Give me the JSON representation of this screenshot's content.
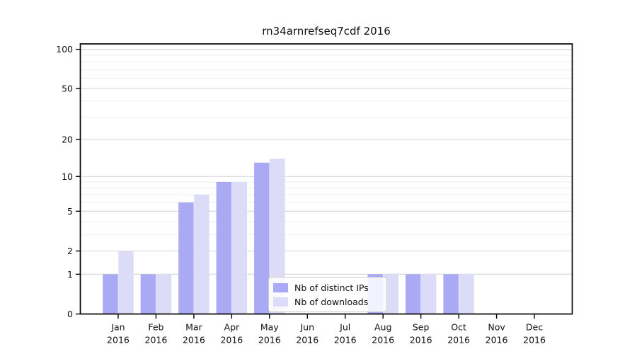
{
  "window": {
    "background": "#ffffff"
  },
  "chart_data": {
    "type": "bar",
    "title": "rn34arnrefseq7cdf 2016",
    "categories": [
      "Jan",
      "Feb",
      "Mar",
      "Apr",
      "May",
      "Jun",
      "Jul",
      "Aug",
      "Sep",
      "Oct",
      "Nov",
      "Dec"
    ],
    "category_year": "2016",
    "series": [
      {
        "name": "Nb of distinct IPs",
        "color": "#a9a9f4",
        "values": [
          1,
          1,
          6,
          9,
          13,
          0,
          0,
          1,
          1,
          1,
          0,
          0
        ]
      },
      {
        "name": "Nb of downloads",
        "color": "#dcdcf9",
        "values": [
          2,
          1,
          7,
          9,
          14,
          0,
          0,
          1,
          1,
          1,
          0,
          0
        ]
      }
    ],
    "xlabel": "",
    "ylabel": "",
    "yscale": "log10(1+x)",
    "ylim": [
      0,
      110
    ],
    "yticks": [
      0,
      1,
      2,
      5,
      10,
      20,
      50,
      100
    ],
    "minor_yticks": [
      3,
      4,
      6,
      7,
      8,
      9,
      30,
      40,
      60,
      70,
      80,
      90
    ],
    "grid": true,
    "legend_position": "lower center",
    "colors": {
      "major_grid": "#d4d4d4",
      "minor_grid": "#eeeeee",
      "spine": "#000000",
      "tick_text": "#111111"
    }
  }
}
